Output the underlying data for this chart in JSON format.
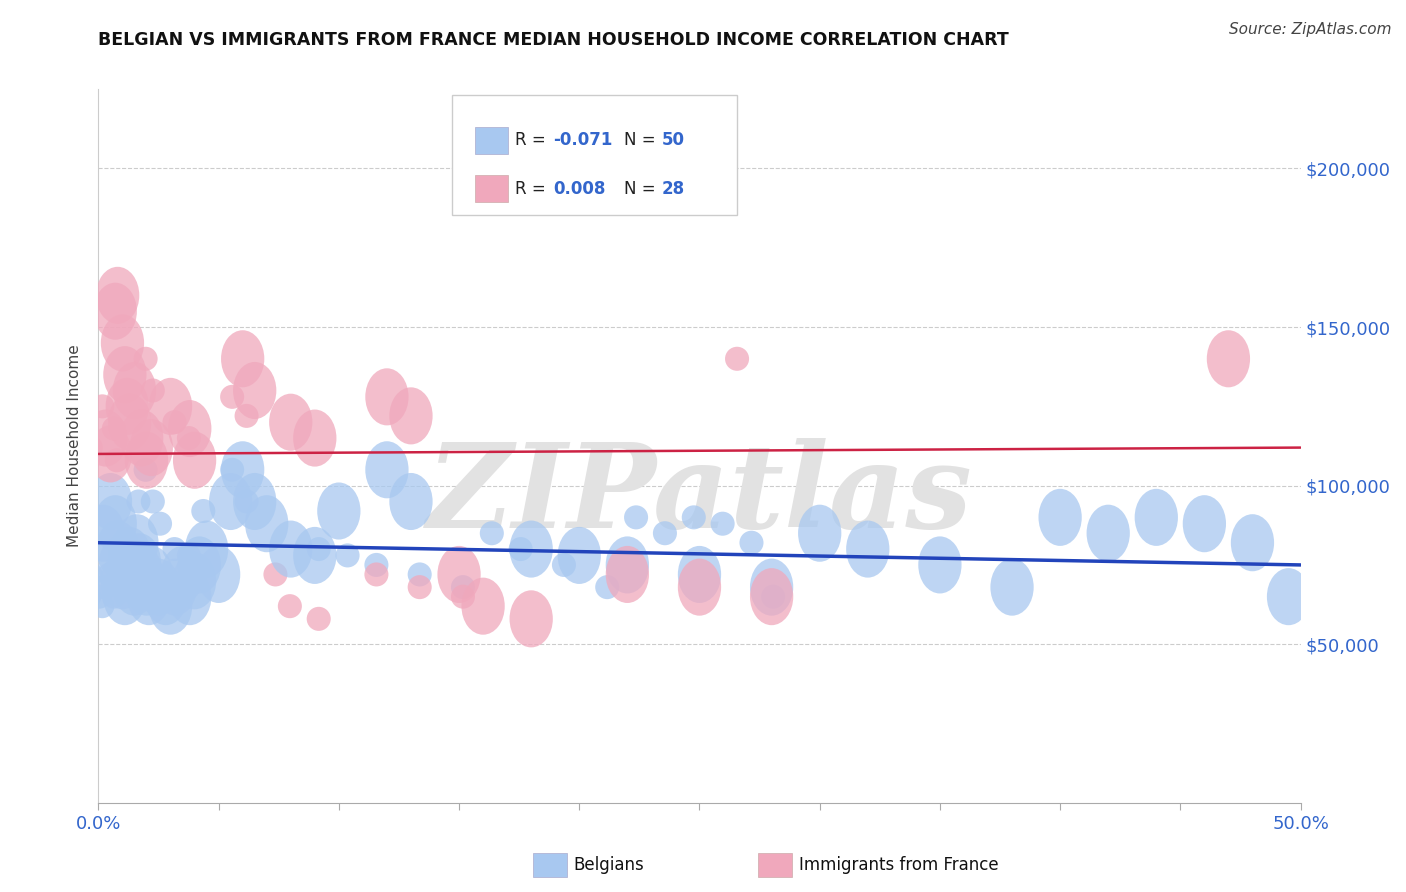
{
  "title": "BELGIAN VS IMMIGRANTS FROM FRANCE MEDIAN HOUSEHOLD INCOME CORRELATION CHART",
  "source": "Source: ZipAtlas.com",
  "ylabel": "Median Household Income",
  "xlim": [
    0.0,
    0.5
  ],
  "ylim": [
    0,
    225000
  ],
  "xtick_positions": [
    0.0,
    0.05,
    0.1,
    0.15,
    0.2,
    0.25,
    0.3,
    0.35,
    0.4,
    0.45,
    0.5
  ],
  "xtick_labels_show": {
    "0.0": "0.0%",
    "0.5": "50.0%"
  },
  "ytick_values": [
    50000,
    100000,
    150000,
    200000
  ],
  "ytick_labels": [
    "$50,000",
    "$100,000",
    "$150,000",
    "$200,000"
  ],
  "legend_label_blue": "Belgians",
  "legend_label_pink": "Immigrants from France",
  "blue_color": "#A8C8F0",
  "pink_color": "#F0A8BC",
  "trendline_blue_color": "#2244BB",
  "trendline_pink_color": "#CC2244",
  "watermark": "ZIPatlas",
  "watermark_color": "#E2E2E2",
  "background_color": "#FFFFFF",
  "grid_color": "#CCCCCC",
  "blue_x": [
    0.002,
    0.005,
    0.007,
    0.008,
    0.009,
    0.01,
    0.011,
    0.013,
    0.014,
    0.015,
    0.016,
    0.017,
    0.018,
    0.02,
    0.021,
    0.022,
    0.025,
    0.028,
    0.03,
    0.032,
    0.035,
    0.038,
    0.04,
    0.042,
    0.045,
    0.05,
    0.055,
    0.06,
    0.065,
    0.07,
    0.08,
    0.09,
    0.1,
    0.12,
    0.13,
    0.18,
    0.2,
    0.22,
    0.25,
    0.28,
    0.3,
    0.32,
    0.35,
    0.38,
    0.4,
    0.42,
    0.44,
    0.46,
    0.48,
    0.495
  ],
  "blue_y": [
    85000,
    95000,
    88000,
    80000,
    75000,
    70000,
    65000,
    78000,
    72000,
    68000,
    82000,
    76000,
    72000,
    68000,
    65000,
    72000,
    68000,
    65000,
    62000,
    68000,
    72000,
    65000,
    70000,
    75000,
    80000,
    72000,
    95000,
    105000,
    95000,
    88000,
    80000,
    78000,
    92000,
    105000,
    95000,
    80000,
    78000,
    75000,
    72000,
    68000,
    85000,
    80000,
    75000,
    68000,
    90000,
    85000,
    90000,
    88000,
    82000,
    65000
  ],
  "pink_x": [
    0.003,
    0.005,
    0.007,
    0.008,
    0.01,
    0.011,
    0.012,
    0.013,
    0.015,
    0.018,
    0.02,
    0.022,
    0.03,
    0.038,
    0.04,
    0.06,
    0.065,
    0.08,
    0.09,
    0.12,
    0.13,
    0.15,
    0.16,
    0.18,
    0.22,
    0.25,
    0.28,
    0.47
  ],
  "pink_y": [
    115000,
    110000,
    155000,
    160000,
    145000,
    135000,
    125000,
    120000,
    130000,
    115000,
    108000,
    112000,
    125000,
    118000,
    108000,
    140000,
    130000,
    120000,
    115000,
    128000,
    122000,
    72000,
    62000,
    58000,
    72000,
    68000,
    65000,
    140000
  ],
  "trendline_blue_x0": 0.0,
  "trendline_blue_x1": 0.5,
  "trendline_blue_y0": 82000,
  "trendline_blue_y1": 75000,
  "trendline_pink_x0": 0.0,
  "trendline_pink_x1": 0.5,
  "trendline_pink_y0": 110000,
  "trendline_pink_y1": 112000
}
